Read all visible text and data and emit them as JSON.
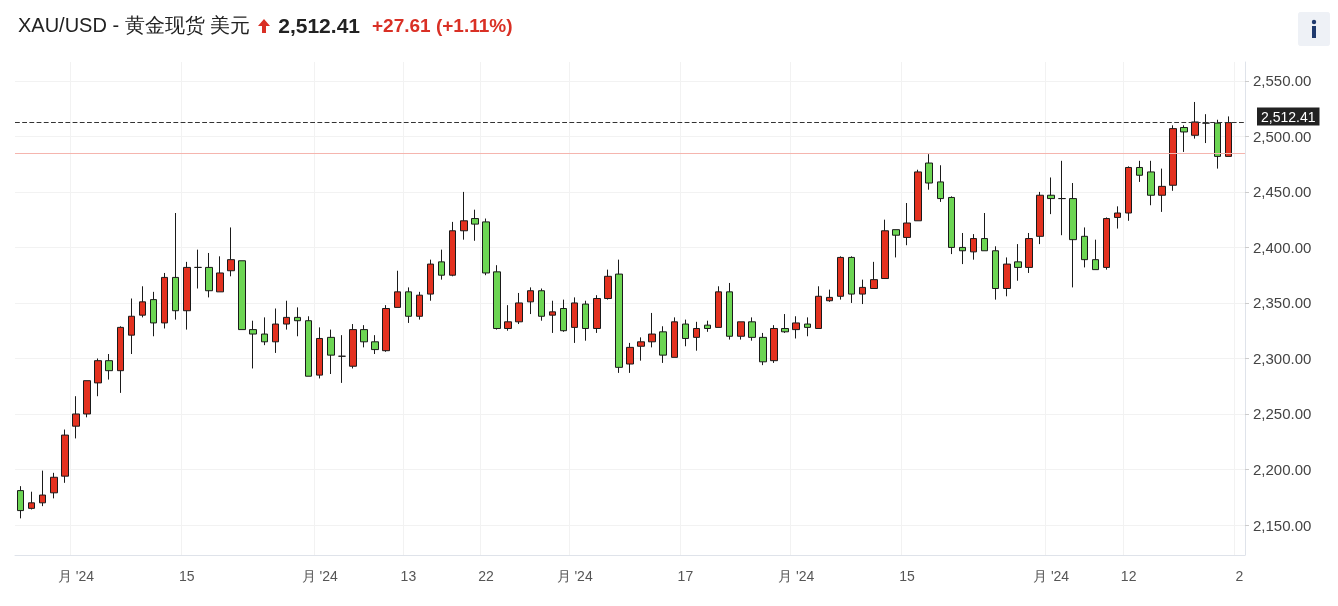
{
  "chart_data": {
    "type": "candlestick",
    "title": "XAU/USD - 黄金现货 美元",
    "subtitle": "2,512.41",
    "annotations": [
      "+27.61 (+1.11%)"
    ],
    "categories": [
      null,
      null,
      null,
      null,
      null,
      "月 '24",
      null,
      null,
      null,
      null,
      null,
      null,
      null,
      null,
      null,
      "15",
      null,
      null,
      null,
      null,
      null,
      null,
      null,
      null,
      null,
      null,
      null,
      "月 '24",
      null,
      null,
      null,
      null,
      null,
      null,
      null,
      "13",
      null,
      null,
      null,
      null,
      null,
      null,
      "22",
      null,
      null,
      null,
      null,
      null,
      null,
      null,
      "月 '24",
      null,
      null,
      null,
      null,
      null,
      null,
      null,
      null,
      null,
      "17",
      null,
      null,
      null,
      null,
      null,
      null,
      null,
      null,
      null,
      "月 '24",
      null,
      null,
      null,
      null,
      null,
      null,
      null,
      null,
      null,
      "15",
      null,
      null,
      null,
      null,
      null,
      null,
      null,
      null,
      null,
      null,
      null,
      null,
      "月 '24",
      null,
      null,
      null,
      null,
      null,
      null,
      "12",
      null,
      null,
      null,
      null,
      null,
      null,
      null,
      null,
      null,
      "2"
    ],
    "ohlc": [
      [
        2181,
        2185,
        2156,
        2163
      ],
      [
        2165,
        2180,
        2164,
        2170
      ],
      [
        2170,
        2199,
        2167,
        2177
      ],
      [
        2179,
        2197,
        2174,
        2193
      ],
      [
        2194,
        2236,
        2188,
        2231
      ],
      [
        2239,
        2266,
        2228,
        2250
      ],
      [
        2250,
        2280,
        2247,
        2280
      ],
      [
        2278,
        2300,
        2266,
        2298
      ],
      [
        2298,
        2304,
        2281,
        2289
      ],
      [
        2289,
        2329,
        2269,
        2328
      ],
      [
        2321,
        2354,
        2304,
        2338
      ],
      [
        2339,
        2365,
        2337,
        2351
      ],
      [
        2353,
        2360,
        2320,
        2332
      ],
      [
        2332,
        2377,
        2327,
        2373
      ],
      [
        2373,
        2431,
        2335,
        2343
      ],
      [
        2343,
        2387,
        2326,
        2382
      ],
      [
        2382,
        2398,
        2363,
        2382
      ],
      [
        2382,
        2395,
        2355,
        2361
      ],
      [
        2360,
        2392,
        2360,
        2377
      ],
      [
        2379,
        2418,
        2374,
        2389
      ],
      [
        2388,
        2388,
        2326,
        2326
      ],
      [
        2326,
        2334,
        2291,
        2322
      ],
      [
        2322,
        2337,
        2312,
        2315
      ],
      [
        2315,
        2345,
        2305,
        2331
      ],
      [
        2331,
        2352,
        2326,
        2337
      ],
      [
        2337,
        2346,
        2320,
        2334
      ],
      [
        2334,
        2338,
        2284,
        2284
      ],
      [
        2285,
        2328,
        2282,
        2318
      ],
      [
        2319,
        2326,
        2286,
        2303
      ],
      [
        2302,
        2321,
        2278,
        2302
      ],
      [
        2293,
        2331,
        2291,
        2326
      ],
      [
        2326,
        2330,
        2310,
        2315
      ],
      [
        2315,
        2321,
        2304,
        2308
      ],
      [
        2307,
        2348,
        2306,
        2345
      ],
      [
        2346,
        2379,
        2346,
        2360
      ],
      [
        2360,
        2364,
        2332,
        2338
      ],
      [
        2338,
        2360,
        2335,
        2357
      ],
      [
        2358,
        2389,
        2352,
        2385
      ],
      [
        2387,
        2398,
        2371,
        2375
      ],
      [
        2375,
        2423,
        2374,
        2415
      ],
      [
        2415,
        2450,
        2407,
        2424
      ],
      [
        2426,
        2434,
        2406,
        2421
      ],
      [
        2423,
        2426,
        2375,
        2377
      ],
      [
        2378,
        2384,
        2326,
        2327
      ],
      [
        2327,
        2348,
        2325,
        2333
      ],
      [
        2333,
        2359,
        2331,
        2350
      ],
      [
        2351,
        2364,
        2340,
        2361
      ],
      [
        2361,
        2363,
        2334,
        2338
      ],
      [
        2339,
        2352,
        2323,
        2342
      ],
      [
        2345,
        2353,
        2324,
        2325
      ],
      [
        2328,
        2355,
        2314,
        2350
      ],
      [
        2349,
        2352,
        2316,
        2327
      ],
      [
        2327,
        2357,
        2323,
        2354
      ],
      [
        2354,
        2380,
        2353,
        2374
      ],
      [
        2376,
        2389,
        2287,
        2292
      ],
      [
        2295,
        2314,
        2287,
        2310
      ],
      [
        2311,
        2319,
        2298,
        2315
      ],
      [
        2315,
        2341,
        2310,
        2322
      ],
      [
        2324,
        2329,
        2296,
        2303
      ],
      [
        2301,
        2337,
        2301,
        2333
      ],
      [
        2331,
        2335,
        2311,
        2318
      ],
      [
        2319,
        2333,
        2307,
        2327
      ],
      [
        2330,
        2334,
        2324,
        2327
      ],
      [
        2328,
        2365,
        2328,
        2360
      ],
      [
        2360,
        2368,
        2317,
        2320
      ],
      [
        2320,
        2333,
        2317,
        2333
      ],
      [
        2333,
        2337,
        2316,
        2319
      ],
      [
        2319,
        2323,
        2294,
        2297
      ],
      [
        2298,
        2330,
        2296,
        2327
      ],
      [
        2327,
        2340,
        2323,
        2324
      ],
      [
        2326,
        2338,
        2318,
        2332
      ],
      [
        2331,
        2337,
        2320,
        2328
      ],
      [
        2327,
        2365,
        2327,
        2356
      ],
      [
        2352,
        2362,
        2351,
        2355
      ],
      [
        2356,
        2392,
        2353,
        2391
      ],
      [
        2391,
        2392,
        2350,
        2358
      ],
      [
        2358,
        2371,
        2349,
        2364
      ],
      [
        2363,
        2387,
        2363,
        2371
      ],
      [
        2372,
        2425,
        2372,
        2415
      ],
      [
        2416,
        2416,
        2391,
        2411
      ],
      [
        2409,
        2440,
        2402,
        2422
      ],
      [
        2424,
        2470,
        2424,
        2468
      ],
      [
        2476,
        2484,
        2452,
        2458
      ],
      [
        2459,
        2474,
        2441,
        2444
      ],
      [
        2445,
        2446,
        2394,
        2400
      ],
      [
        2400,
        2413,
        2385,
        2397
      ],
      [
        2396,
        2412,
        2389,
        2408
      ],
      [
        2408,
        2431,
        2397,
        2397
      ],
      [
        2397,
        2401,
        2353,
        2363
      ],
      [
        2363,
        2391,
        2356,
        2385
      ],
      [
        2387,
        2403,
        2370,
        2382
      ],
      [
        2382,
        2413,
        2377,
        2408
      ],
      [
        2410,
        2450,
        2403,
        2447
      ],
      [
        2447,
        2463,
        2430,
        2444
      ],
      [
        2444,
        2478,
        2411,
        2444
      ],
      [
        2444,
        2458,
        2364,
        2407
      ],
      [
        2410,
        2418,
        2382,
        2389
      ],
      [
        2389,
        2407,
        2380,
        2380
      ],
      [
        2382,
        2427,
        2380,
        2426
      ],
      [
        2427,
        2437,
        2417,
        2431
      ],
      [
        2431,
        2473,
        2424,
        2472
      ],
      [
        2472,
        2478,
        2459,
        2465
      ],
      [
        2468,
        2478,
        2438,
        2447
      ],
      [
        2447,
        2471,
        2432,
        2455
      ],
      [
        2456,
        2510,
        2451,
        2507
      ],
      [
        2508,
        2510,
        2486,
        2504
      ],
      [
        2501,
        2531,
        2498,
        2513
      ],
      [
        2512,
        2520,
        2494,
        2512
      ],
      [
        2512,
        2515,
        2471,
        2482
      ],
      [
        2482,
        2518,
        2482,
        2512.41
      ],
      null
    ],
    "ylim": [
      2123,
      2567
    ],
    "yticks": [
      {
        "value": 2150,
        "label": "2,150.00"
      },
      {
        "value": 2200,
        "label": "2,200.00"
      },
      {
        "value": 2250,
        "label": "2,250.00"
      },
      {
        "value": 2300,
        "label": "2,300.00"
      },
      {
        "value": 2350,
        "label": "2,350.00"
      },
      {
        "value": 2400,
        "label": "2,400.00"
      },
      {
        "value": 2450,
        "label": "2,450.00"
      },
      {
        "value": 2500,
        "label": "2,500.00"
      },
      {
        "value": 2550,
        "label": "2,550.00"
      }
    ],
    "ref_lines": [
      {
        "axis": "y",
        "value": 2512.41,
        "label": "2,512.41",
        "color": "#333333",
        "line_style": "dashed"
      },
      {
        "axis": "y",
        "value": 2484.8,
        "color": "#f5b5ae",
        "line_style": "solid"
      }
    ],
    "grid": true
  }
}
